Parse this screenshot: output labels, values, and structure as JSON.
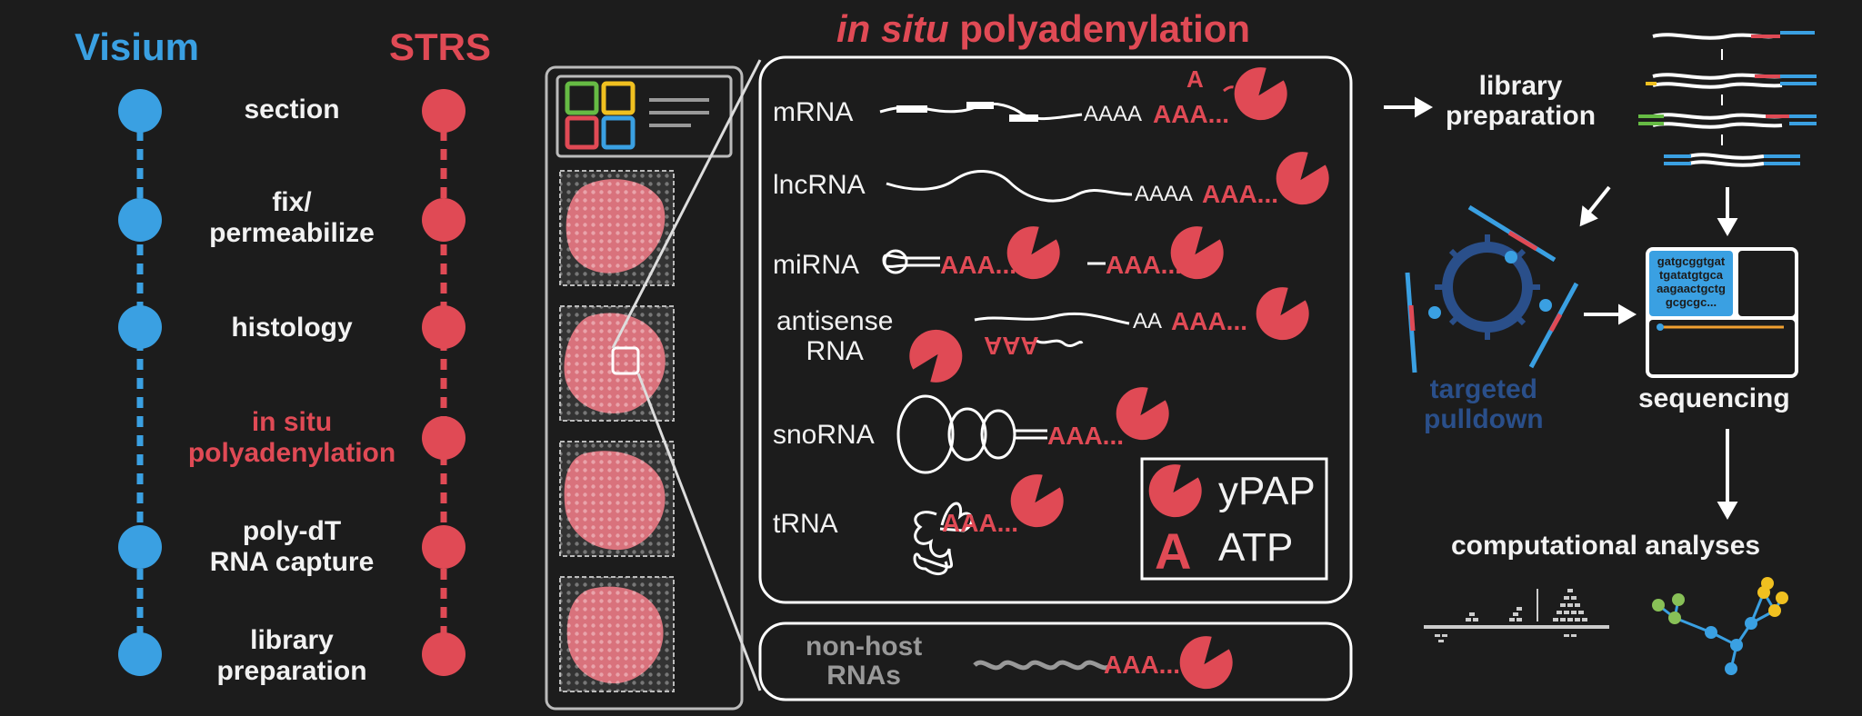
{
  "left": {
    "visium_label": "Visium",
    "strs_label": "STRS",
    "steps": [
      "section",
      "fix/\npermeabilize",
      "histology",
      "in situ\npolyadenylation",
      "poly-dT\nRNA capture",
      "library\npreparation"
    ]
  },
  "title": {
    "italic": "in situ",
    "rest": " polyadenylation"
  },
  "rna": {
    "mrna": "mRNA",
    "lncrna": "lncRNA",
    "mirna": "miRNA",
    "antisense": "antisense\nRNA",
    "snorna": "snoRNA",
    "trna": "tRNA",
    "tail_a4": "AAAA",
    "tail_a2": "AA",
    "tail_red": "AAA...",
    "a_single": "A",
    "antisense_rev": "AAA"
  },
  "legend": {
    "ypap": "yPAP",
    "a_letter": "A",
    "atp": "ATP"
  },
  "nonhost": "non-host\nRNAs",
  "right": {
    "library_prep": "library\npreparation",
    "targeted_pulldown": "targeted\npulldown",
    "sequencing": "sequencing",
    "computational": "computational analyses",
    "seq_text": [
      "gatgcggtgat",
      "tgatatgtgca",
      "aagaactgctg",
      "gcgcgc..."
    ]
  },
  "colors": {
    "blue": "#3aa0e2",
    "red": "#e04a55",
    "navy": "#2a4f8a",
    "bg": "#1c1c1c",
    "tissue": "#d9727c"
  }
}
